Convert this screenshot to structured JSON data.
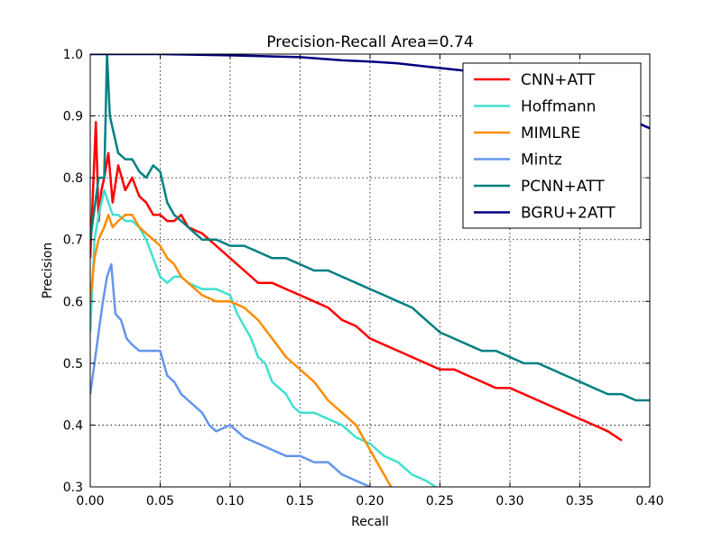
{
  "chart_data": {
    "type": "line",
    "title": "Precision-Recall Area=0.74",
    "xlabel": "Recall",
    "ylabel": "Precision",
    "xlim": [
      0.0,
      0.4
    ],
    "ylim": [
      0.3,
      1.0
    ],
    "xticks": [
      "0.00",
      "0.05",
      "0.10",
      "0.15",
      "0.20",
      "0.25",
      "0.30",
      "0.35",
      "0.40"
    ],
    "yticks": [
      "0.3",
      "0.4",
      "0.5",
      "0.6",
      "0.7",
      "0.8",
      "0.9",
      "1.0"
    ],
    "grid": true,
    "legend_position": "top-right",
    "series": [
      {
        "name": "CNN+ATT",
        "color": "#ff0000",
        "points": [
          [
            0.0,
            0.67
          ],
          [
            0.002,
            0.78
          ],
          [
            0.004,
            0.89
          ],
          [
            0.006,
            0.73
          ],
          [
            0.008,
            0.78
          ],
          [
            0.01,
            0.8
          ],
          [
            0.013,
            0.84
          ],
          [
            0.016,
            0.76
          ],
          [
            0.02,
            0.82
          ],
          [
            0.025,
            0.78
          ],
          [
            0.03,
            0.8
          ],
          [
            0.035,
            0.77
          ],
          [
            0.04,
            0.76
          ],
          [
            0.045,
            0.74
          ],
          [
            0.05,
            0.74
          ],
          [
            0.055,
            0.73
          ],
          [
            0.06,
            0.73
          ],
          [
            0.065,
            0.74
          ],
          [
            0.07,
            0.72
          ],
          [
            0.08,
            0.71
          ],
          [
            0.09,
            0.69
          ],
          [
            0.1,
            0.67
          ],
          [
            0.11,
            0.65
          ],
          [
            0.12,
            0.63
          ],
          [
            0.13,
            0.63
          ],
          [
            0.14,
            0.62
          ],
          [
            0.15,
            0.61
          ],
          [
            0.16,
            0.6
          ],
          [
            0.17,
            0.59
          ],
          [
            0.18,
            0.57
          ],
          [
            0.19,
            0.56
          ],
          [
            0.2,
            0.54
          ],
          [
            0.21,
            0.53
          ],
          [
            0.22,
            0.52
          ],
          [
            0.23,
            0.51
          ],
          [
            0.24,
            0.5
          ],
          [
            0.25,
            0.49
          ],
          [
            0.26,
            0.49
          ],
          [
            0.27,
            0.48
          ],
          [
            0.28,
            0.47
          ],
          [
            0.29,
            0.46
          ],
          [
            0.3,
            0.46
          ],
          [
            0.31,
            0.45
          ],
          [
            0.32,
            0.44
          ],
          [
            0.33,
            0.43
          ],
          [
            0.34,
            0.42
          ],
          [
            0.35,
            0.41
          ],
          [
            0.36,
            0.4
          ],
          [
            0.37,
            0.39
          ],
          [
            0.38,
            0.375
          ]
        ]
      },
      {
        "name": "Hoffmann",
        "color": "#40e0d0",
        "points": [
          [
            0.0,
            0.55
          ],
          [
            0.003,
            0.7
          ],
          [
            0.006,
            0.74
          ],
          [
            0.01,
            0.78
          ],
          [
            0.013,
            0.76
          ],
          [
            0.016,
            0.74
          ],
          [
            0.02,
            0.74
          ],
          [
            0.025,
            0.73
          ],
          [
            0.03,
            0.73
          ],
          [
            0.035,
            0.72
          ],
          [
            0.04,
            0.7
          ],
          [
            0.045,
            0.67
          ],
          [
            0.05,
            0.64
          ],
          [
            0.055,
            0.63
          ],
          [
            0.06,
            0.64
          ],
          [
            0.065,
            0.64
          ],
          [
            0.07,
            0.63
          ],
          [
            0.08,
            0.62
          ],
          [
            0.09,
            0.62
          ],
          [
            0.1,
            0.61
          ],
          [
            0.105,
            0.58
          ],
          [
            0.11,
            0.56
          ],
          [
            0.115,
            0.54
          ],
          [
            0.12,
            0.51
          ],
          [
            0.125,
            0.5
          ],
          [
            0.13,
            0.47
          ],
          [
            0.135,
            0.46
          ],
          [
            0.14,
            0.45
          ],
          [
            0.145,
            0.43
          ],
          [
            0.15,
            0.42
          ],
          [
            0.16,
            0.42
          ],
          [
            0.17,
            0.41
          ],
          [
            0.18,
            0.4
          ],
          [
            0.19,
            0.38
          ],
          [
            0.2,
            0.37
          ],
          [
            0.21,
            0.35
          ],
          [
            0.22,
            0.34
          ],
          [
            0.23,
            0.32
          ],
          [
            0.24,
            0.31
          ],
          [
            0.247,
            0.3
          ]
        ]
      },
      {
        "name": "MIMLRE",
        "color": "#ff8c00",
        "points": [
          [
            0.0,
            0.6
          ],
          [
            0.003,
            0.67
          ],
          [
            0.006,
            0.7
          ],
          [
            0.01,
            0.72
          ],
          [
            0.013,
            0.74
          ],
          [
            0.016,
            0.72
          ],
          [
            0.02,
            0.73
          ],
          [
            0.025,
            0.74
          ],
          [
            0.03,
            0.74
          ],
          [
            0.035,
            0.72
          ],
          [
            0.04,
            0.71
          ],
          [
            0.045,
            0.7
          ],
          [
            0.05,
            0.69
          ],
          [
            0.055,
            0.67
          ],
          [
            0.06,
            0.66
          ],
          [
            0.065,
            0.64
          ],
          [
            0.07,
            0.63
          ],
          [
            0.08,
            0.61
          ],
          [
            0.09,
            0.6
          ],
          [
            0.1,
            0.6
          ],
          [
            0.11,
            0.59
          ],
          [
            0.12,
            0.57
          ],
          [
            0.13,
            0.54
          ],
          [
            0.14,
            0.51
          ],
          [
            0.15,
            0.49
          ],
          [
            0.16,
            0.47
          ],
          [
            0.17,
            0.44
          ],
          [
            0.18,
            0.42
          ],
          [
            0.19,
            0.4
          ],
          [
            0.2,
            0.36
          ],
          [
            0.21,
            0.32
          ],
          [
            0.215,
            0.3
          ]
        ]
      },
      {
        "name": "Mintz",
        "color": "#6495ed",
        "points": [
          [
            0.0,
            0.45
          ],
          [
            0.003,
            0.5
          ],
          [
            0.006,
            0.55
          ],
          [
            0.009,
            0.6
          ],
          [
            0.012,
            0.64
          ],
          [
            0.015,
            0.66
          ],
          [
            0.018,
            0.58
          ],
          [
            0.022,
            0.57
          ],
          [
            0.026,
            0.54
          ],
          [
            0.03,
            0.53
          ],
          [
            0.035,
            0.52
          ],
          [
            0.04,
            0.52
          ],
          [
            0.045,
            0.52
          ],
          [
            0.05,
            0.52
          ],
          [
            0.055,
            0.48
          ],
          [
            0.06,
            0.47
          ],
          [
            0.065,
            0.45
          ],
          [
            0.07,
            0.44
          ],
          [
            0.075,
            0.43
          ],
          [
            0.08,
            0.42
          ],
          [
            0.085,
            0.4
          ],
          [
            0.09,
            0.39
          ],
          [
            0.1,
            0.4
          ],
          [
            0.11,
            0.38
          ],
          [
            0.12,
            0.37
          ],
          [
            0.13,
            0.36
          ],
          [
            0.14,
            0.35
          ],
          [
            0.15,
            0.35
          ],
          [
            0.16,
            0.34
          ],
          [
            0.17,
            0.34
          ],
          [
            0.18,
            0.32
          ],
          [
            0.19,
            0.31
          ],
          [
            0.2,
            0.3
          ]
        ]
      },
      {
        "name": "PCNN+ATT",
        "color": "#008080",
        "points": [
          [
            0.0,
            0.7
          ],
          [
            0.003,
            0.75
          ],
          [
            0.006,
            0.8
          ],
          [
            0.01,
            0.8
          ],
          [
            0.012,
            1.0
          ],
          [
            0.014,
            0.9
          ],
          [
            0.016,
            0.88
          ],
          [
            0.02,
            0.84
          ],
          [
            0.025,
            0.83
          ],
          [
            0.03,
            0.83
          ],
          [
            0.035,
            0.81
          ],
          [
            0.04,
            0.8
          ],
          [
            0.045,
            0.82
          ],
          [
            0.05,
            0.81
          ],
          [
            0.055,
            0.76
          ],
          [
            0.06,
            0.74
          ],
          [
            0.065,
            0.73
          ],
          [
            0.07,
            0.72
          ],
          [
            0.08,
            0.7
          ],
          [
            0.09,
            0.7
          ],
          [
            0.1,
            0.69
          ],
          [
            0.11,
            0.69
          ],
          [
            0.12,
            0.68
          ],
          [
            0.13,
            0.67
          ],
          [
            0.14,
            0.67
          ],
          [
            0.15,
            0.66
          ],
          [
            0.16,
            0.65
          ],
          [
            0.17,
            0.65
          ],
          [
            0.18,
            0.64
          ],
          [
            0.19,
            0.63
          ],
          [
            0.2,
            0.62
          ],
          [
            0.21,
            0.61
          ],
          [
            0.22,
            0.6
          ],
          [
            0.23,
            0.59
          ],
          [
            0.24,
            0.57
          ],
          [
            0.25,
            0.55
          ],
          [
            0.26,
            0.54
          ],
          [
            0.27,
            0.53
          ],
          [
            0.28,
            0.52
          ],
          [
            0.29,
            0.52
          ],
          [
            0.3,
            0.51
          ],
          [
            0.31,
            0.5
          ],
          [
            0.32,
            0.5
          ],
          [
            0.33,
            0.49
          ],
          [
            0.34,
            0.48
          ],
          [
            0.35,
            0.47
          ],
          [
            0.36,
            0.46
          ],
          [
            0.37,
            0.45
          ],
          [
            0.38,
            0.45
          ],
          [
            0.39,
            0.44
          ],
          [
            0.4,
            0.44
          ]
        ]
      },
      {
        "name": "BGRU+2ATT",
        "color": "#000080",
        "points": [
          [
            0.0,
            1.0
          ],
          [
            0.05,
            1.0
          ],
          [
            0.1,
            0.998
          ],
          [
            0.15,
            0.995
          ],
          [
            0.18,
            0.99
          ],
          [
            0.2,
            0.988
          ],
          [
            0.22,
            0.985
          ],
          [
            0.24,
            0.98
          ],
          [
            0.26,
            0.975
          ],
          [
            0.28,
            0.97
          ],
          [
            0.3,
            0.96
          ],
          [
            0.32,
            0.95
          ],
          [
            0.34,
            0.93
          ],
          [
            0.36,
            0.92
          ],
          [
            0.38,
            0.9
          ],
          [
            0.4,
            0.88
          ]
        ]
      }
    ]
  }
}
